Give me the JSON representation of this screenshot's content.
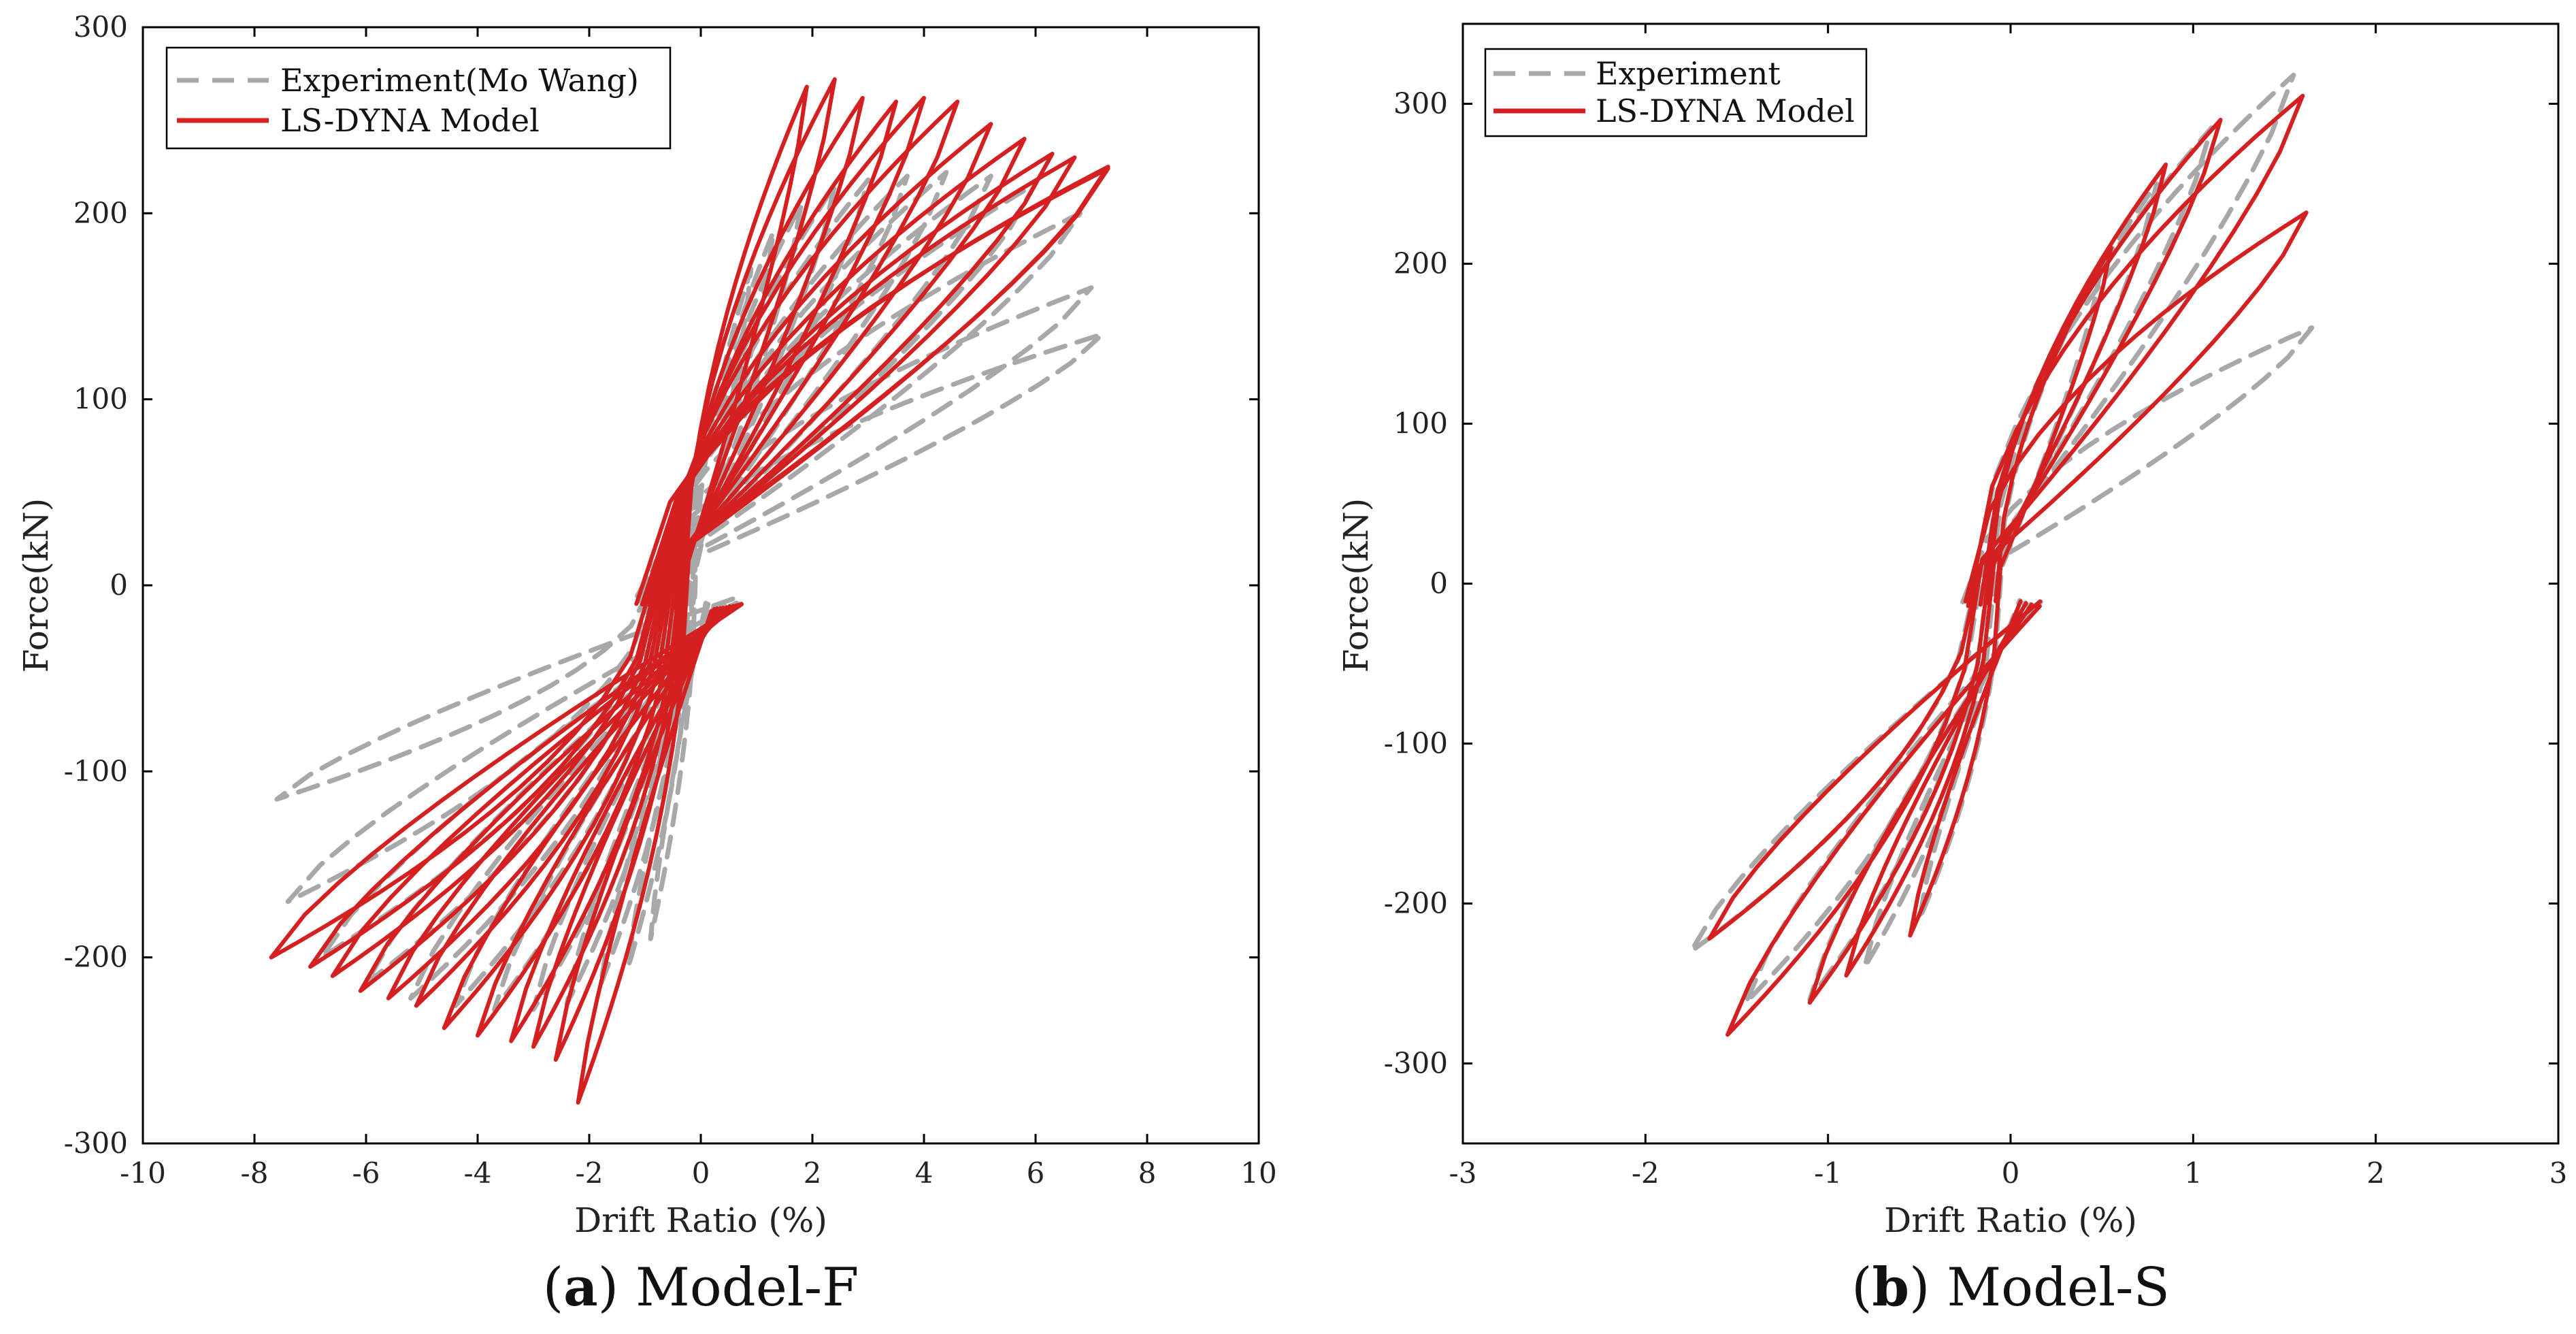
{
  "chart_data": [
    {
      "id": "a",
      "type": "line",
      "title": "",
      "caption_letter": "a",
      "caption_text": "Model-F",
      "xlabel": "Drift Ratio (%)",
      "ylabel": "Force(kN)",
      "xlim": [
        -10,
        10
      ],
      "ylim": [
        -300,
        300
      ],
      "xticks": [
        -10,
        -8,
        -6,
        -4,
        -2,
        0,
        2,
        4,
        6,
        8,
        10
      ],
      "yticks": [
        -300,
        -200,
        -100,
        0,
        100,
        200,
        300
      ],
      "legend": {
        "position": "top-left",
        "entries": [
          "Experiment(Mo Wang)",
          "LS-DYNA Model"
        ]
      },
      "series": [
        {
          "name": "Experiment(Mo Wang)",
          "style": "dashed",
          "color": "#a8a8a8",
          "loops": [
            {
              "xpos": 0.9,
              "ypos": 170,
              "xneg": -0.9,
              "yneg": -190
            },
            {
              "xpos": 1.3,
              "ypos": 190,
              "xneg": -1.3,
              "yneg": -205
            },
            {
              "xpos": 1.8,
              "ypos": 205,
              "xneg": -1.8,
              "yneg": -215
            },
            {
              "xpos": 2.4,
              "ypos": 215,
              "xneg": -2.4,
              "yneg": -225
            },
            {
              "xpos": 3.0,
              "ypos": 218,
              "xneg": -3.0,
              "yneg": -228
            },
            {
              "xpos": 3.7,
              "ypos": 220,
              "xneg": -3.7,
              "yneg": -228
            },
            {
              "xpos": 4.4,
              "ypos": 222,
              "xneg": -4.4,
              "yneg": -226
            },
            {
              "xpos": 5.2,
              "ypos": 220,
              "xneg": -5.2,
              "yneg": -222
            },
            {
              "xpos": 6.0,
              "ypos": 216,
              "xneg": -6.0,
              "yneg": -214
            },
            {
              "xpos": 6.8,
              "ypos": 200,
              "xneg": -6.8,
              "yneg": -200
            },
            {
              "xpos": 7.0,
              "ypos": 160,
              "xneg": -7.4,
              "yneg": -170
            },
            {
              "xpos": 7.2,
              "ypos": 135,
              "xneg": -7.6,
              "yneg": -115
            }
          ]
        },
        {
          "name": "LS-DYNA Model",
          "style": "solid",
          "color": "#d42020",
          "loops": [
            {
              "xpos": 1.9,
              "ypos": 268,
              "xneg": -2.2,
              "yneg": -278
            },
            {
              "xpos": 2.4,
              "ypos": 272,
              "xneg": -2.6,
              "yneg": -255
            },
            {
              "xpos": 2.9,
              "ypos": 262,
              "xneg": -3.0,
              "yneg": -248
            },
            {
              "xpos": 3.5,
              "ypos": 260,
              "xneg": -3.4,
              "yneg": -245
            },
            {
              "xpos": 4.0,
              "ypos": 262,
              "xneg": -4.0,
              "yneg": -242
            },
            {
              "xpos": 4.6,
              "ypos": 260,
              "xneg": -4.6,
              "yneg": -238
            },
            {
              "xpos": 5.2,
              "ypos": 248,
              "xneg": -5.1,
              "yneg": -226
            },
            {
              "xpos": 5.8,
              "ypos": 240,
              "xneg": -5.6,
              "yneg": -222
            },
            {
              "xpos": 6.3,
              "ypos": 232,
              "xneg": -6.1,
              "yneg": -218
            },
            {
              "xpos": 6.7,
              "ypos": 230,
              "xneg": -6.6,
              "yneg": -210
            },
            {
              "xpos": 7.3,
              "ypos": 225,
              "xneg": -7.0,
              "yneg": -205
            },
            {
              "xpos": 7.3,
              "ypos": 224,
              "xneg": -7.7,
              "yneg": -200
            }
          ]
        }
      ]
    },
    {
      "id": "b",
      "type": "line",
      "title": "",
      "caption_letter": "b",
      "caption_text": "Model-S",
      "xlabel": "Drift Ratio (%)",
      "ylabel": "Force(kN)",
      "xlim": [
        -3,
        3
      ],
      "ylim": [
        -350,
        350
      ],
      "xticks": [
        -3,
        -2,
        -1,
        0,
        1,
        2,
        3
      ],
      "yticks": [
        -300,
        -200,
        -100,
        0,
        100,
        200,
        300
      ],
      "legend": {
        "position": "top-left",
        "entries": [
          "Experiment",
          "LS-DYNA Model"
        ]
      },
      "series": [
        {
          "name": "Experiment",
          "style": "dashed",
          "color": "#a8a8a8",
          "loops": [
            {
              "xpos": 0.5,
              "ypos": 200,
              "xneg": -0.5,
              "yneg": -210
            },
            {
              "xpos": 0.8,
              "ypos": 250,
              "xneg": -0.8,
              "yneg": -240
            },
            {
              "xpos": 1.1,
              "ypos": 285,
              "xneg": -1.1,
              "yneg": -260
            },
            {
              "xpos": 1.55,
              "ypos": 318,
              "xneg": -1.45,
              "yneg": -262
            },
            {
              "xpos": 1.65,
              "ypos": 160,
              "xneg": -1.75,
              "yneg": -230
            }
          ]
        },
        {
          "name": "LS-DYNA Model",
          "style": "solid",
          "color": "#d42020",
          "loops": [
            {
              "xpos": 0.55,
              "ypos": 210,
              "xneg": -0.55,
              "yneg": -220
            },
            {
              "xpos": 0.85,
              "ypos": 262,
              "xneg": -0.9,
              "yneg": -245
            },
            {
              "xpos": 1.15,
              "ypos": 290,
              "xneg": -1.1,
              "yneg": -262
            },
            {
              "xpos": 1.6,
              "ypos": 305,
              "xneg": -1.55,
              "yneg": -282
            },
            {
              "xpos": 1.62,
              "ypos": 232,
              "xneg": -1.65,
              "yneg": -222
            }
          ]
        }
      ]
    }
  ]
}
